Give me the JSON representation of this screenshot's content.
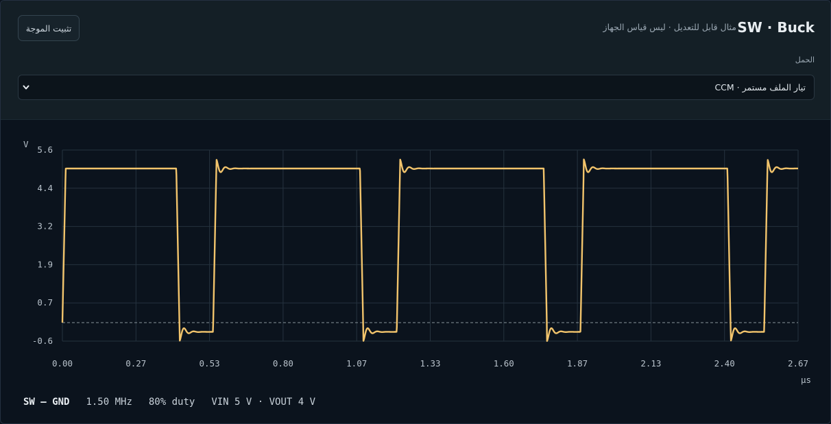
{
  "header": {
    "title": "SW · Buck",
    "subtitle": "مثال قابل للتعديل · ليس قياس الجهاز",
    "pin_button": "تثبيت الموجة",
    "load_label": "الحمل",
    "load_select": {
      "value": "تيار الملف مستمر · CCM"
    }
  },
  "footer": {
    "probe": "SW – GND",
    "frequency": "1.50 MHz",
    "duty": "80% duty",
    "voltages": "VIN 5 V · VOUT 4 V"
  },
  "colors": {
    "trace": "#f2c46c",
    "grid": "#26333f",
    "reference": "#8a949c"
  },
  "chart_data": {
    "type": "line",
    "y_unit": "V",
    "x_unit": "µs",
    "yticks": [
      "5.6",
      "4.4",
      "3.2",
      "1.9",
      "0.7",
      "-0.6"
    ],
    "xticks": [
      "0.00",
      "0.27",
      "0.53",
      "0.80",
      "1.07",
      "1.33",
      "1.60",
      "1.87",
      "2.13",
      "2.40",
      "2.67"
    ],
    "xlim": [
      0,
      2.67
    ],
    "ylim": [
      -0.6,
      5.6
    ],
    "grid": true,
    "reference_line_y": 0,
    "switching_period_us": 0.6667,
    "duty": 0.8,
    "high_level_v": 5.0,
    "low_level_v": -0.3,
    "rise_time_us": 0.012,
    "fall_time_us": 0.012,
    "ringing_overshoot_v": 0.3
  }
}
